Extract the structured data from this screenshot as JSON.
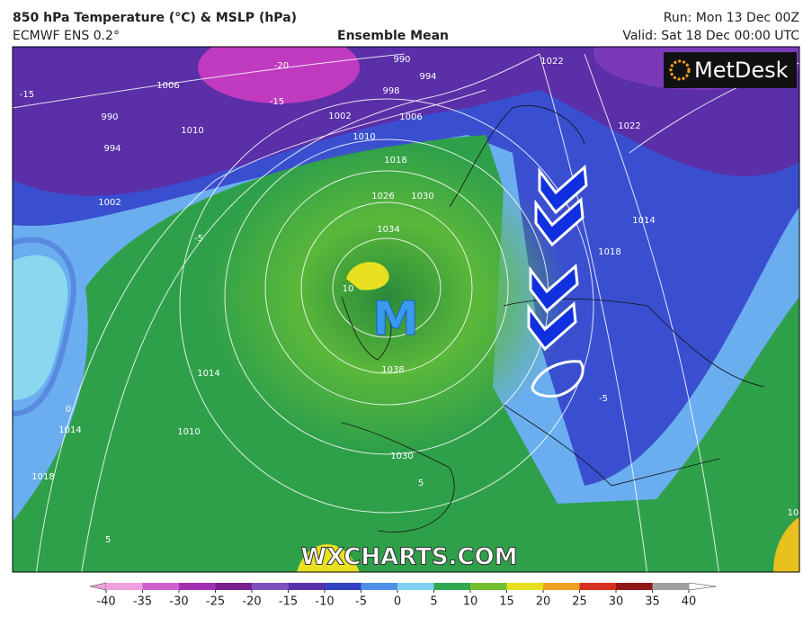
{
  "header": {
    "title": "850 hPa Temperature (°C) & MSLP (hPa)",
    "model": "ECMWF ENS 0.2°",
    "product": "Ensemble Mean",
    "run": "Run: Mon 13 Dec 00Z",
    "valid": "Valid: Sat 18 Dec 00:00 UTC"
  },
  "map": {
    "logo": "MetDesk",
    "watermark": "WXCHARTS.COM",
    "marker": "M",
    "isobar_labels": [
      990,
      994,
      998,
      1002,
      1006,
      1010,
      1018,
      1026,
      1030,
      1034,
      1038,
      1030,
      1022,
      1022,
      1014,
      1018,
      1014,
      1010,
      1014,
      1018,
      990,
      994,
      1002,
      1006,
      1010
    ],
    "temperature_labels": [
      -20,
      -15,
      -15,
      -5,
      0,
      5,
      -5,
      10,
      5,
      10
    ]
  },
  "colorbar": {
    "range": [
      -40,
      40
    ],
    "ticks": [
      -40,
      -35,
      -30,
      -25,
      -20,
      -15,
      -10,
      -5,
      0,
      5,
      10,
      15,
      20,
      25,
      30,
      35,
      40
    ],
    "colors": [
      "#f0a0e0",
      "#d060d0",
      "#a030b0",
      "#7a2090",
      "#8050c0",
      "#5a30a8",
      "#3040c0",
      "#5090e8",
      "#80d0f0",
      "#30a850",
      "#70c030",
      "#e8e020",
      "#f0a020",
      "#d83020",
      "#901818",
      "#a0a0a0"
    ]
  }
}
